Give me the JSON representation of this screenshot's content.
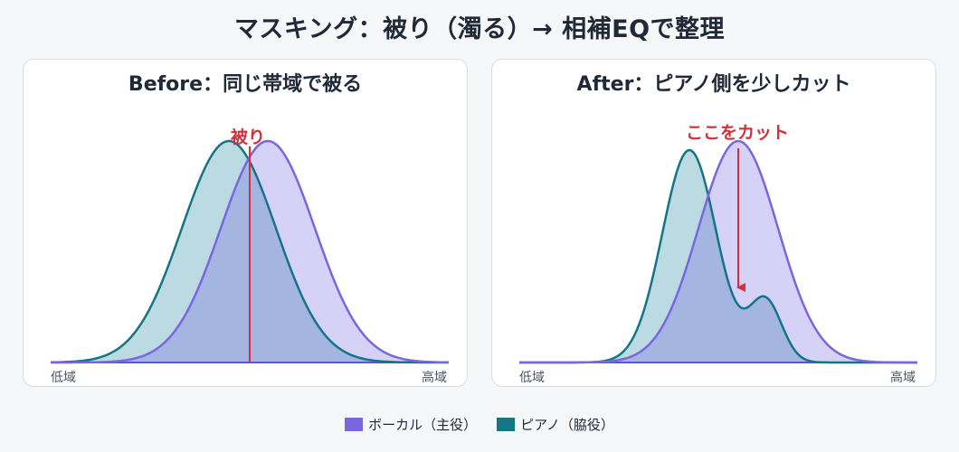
{
  "title": "マスキング：被り（濁る）→ 相補EQで整理",
  "panels": {
    "before": {
      "title": "Before：同じ帯域で被る",
      "annotation": "被り",
      "axis_low": "低域",
      "axis_high": "高域"
    },
    "after": {
      "title": "After：ピアノ側を少しカット",
      "annotation": "ここをカット",
      "axis_low": "低域",
      "axis_high": "高域"
    }
  },
  "legend": [
    {
      "label": "ボーカル（主役）",
      "color": "#7b66e0"
    },
    {
      "label": "ピアノ（脇役）",
      "color": "#137585"
    }
  ],
  "colors": {
    "vocal_stroke": "#7b66e0",
    "vocal_fill": "#d6d1f7",
    "piano_stroke": "#137585",
    "piano_fill": "#bcdae1",
    "overlap_fill": "#a5b5e2",
    "annotation": "#d0313b"
  }
}
